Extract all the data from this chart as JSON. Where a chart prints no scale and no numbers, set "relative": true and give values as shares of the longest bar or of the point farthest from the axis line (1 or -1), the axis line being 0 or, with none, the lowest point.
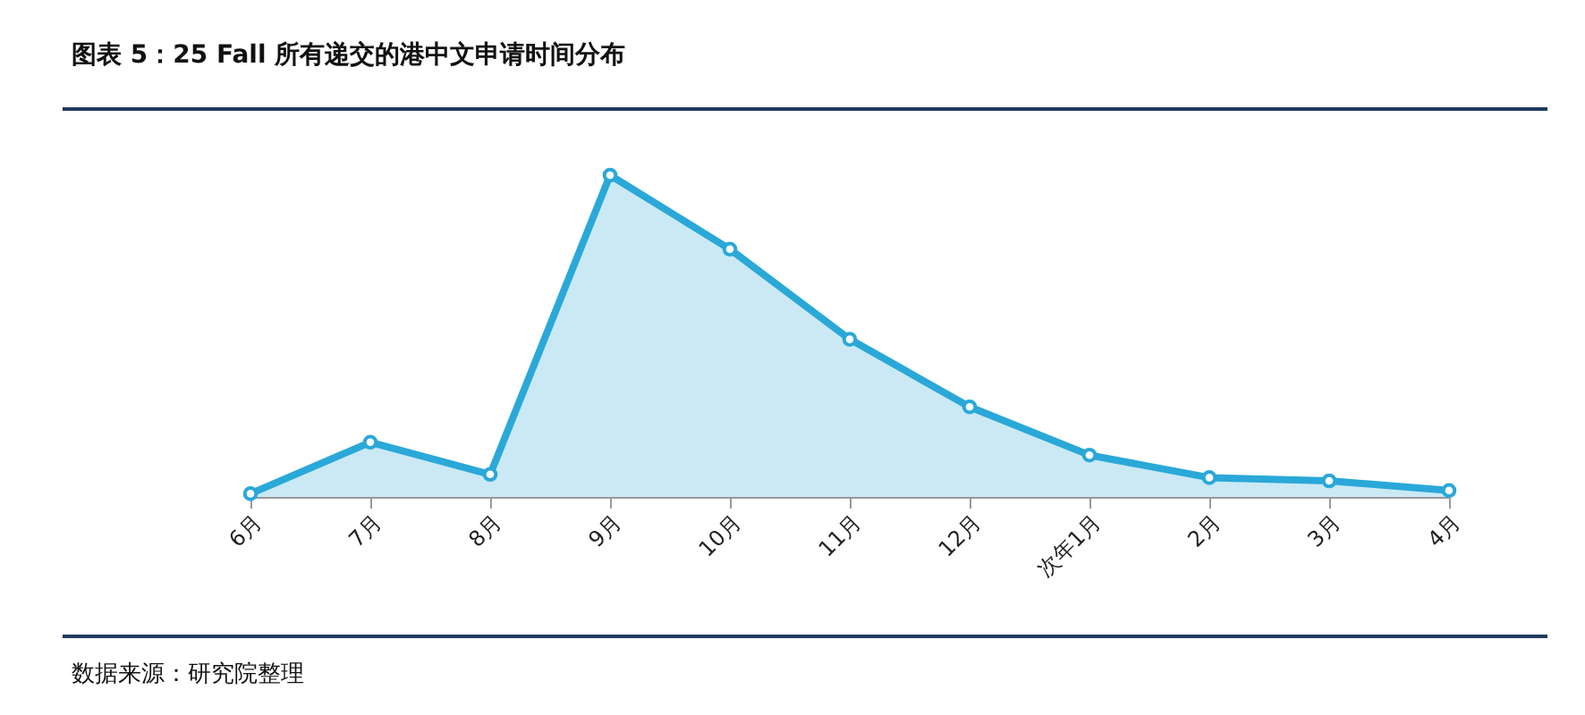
{
  "chart_data": {
    "type": "area",
    "title": "图表 5：25 Fall 所有递交的港中文申请时间分布",
    "categories": [
      "6月",
      "7月",
      "8月",
      "9月",
      "10月",
      "11月",
      "12月",
      "次年1月",
      "2月",
      "3月",
      "4月"
    ],
    "series": [
      {
        "color": "#2aa8d8",
        "values": [
          0.01,
          0.17,
          0.07,
          1,
          0.77,
          0.49,
          0.28,
          0.13,
          0.06,
          0.05,
          0.02
        ]
      }
    ],
    "relative": true,
    "marker": "circle",
    "annotations": [
      "数据来源：研究院整理"
    ]
  }
}
